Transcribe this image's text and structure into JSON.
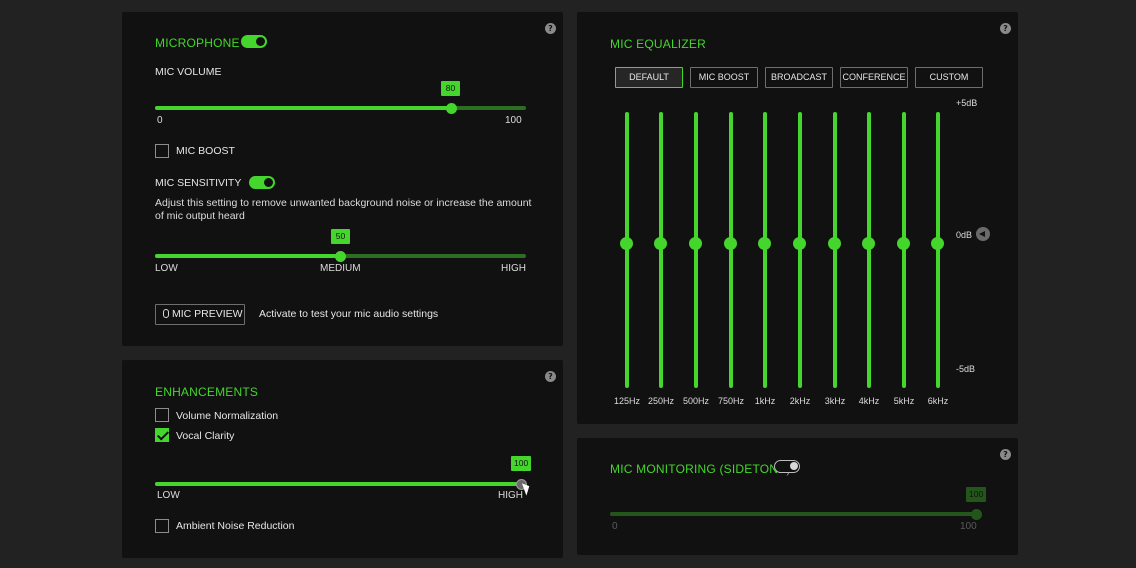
{
  "microphone": {
    "title": "MICROPHONE",
    "toggle_on": true,
    "volume_label": "MIC VOLUME",
    "volume_value": "80",
    "volume_fraction": 0.8,
    "volume_min": "0",
    "volume_max": "100",
    "mic_boost_label": "MIC BOOST",
    "mic_boost_checked": false,
    "sensitivity_label": "MIC SENSITIVITY",
    "sensitivity_toggle_on": true,
    "sensitivity_desc_line1": "Adjust this setting to remove unwanted background noise or increase the amount",
    "sensitivity_desc_line2": "of mic output heard",
    "sensitivity_value": "50",
    "sensitivity_fraction": 0.5,
    "sensitivity_low": "LOW",
    "sensitivity_medium": "MEDIUM",
    "sensitivity_high": "HIGH",
    "preview_button": "MIC PREVIEW",
    "preview_desc": "Activate to test your mic audio settings"
  },
  "enhancements": {
    "title": "ENHANCEMENTS",
    "volume_normalization": "Volume Normalization",
    "volume_normalization_checked": false,
    "vocal_clarity": "Vocal Clarity",
    "vocal_clarity_checked": true,
    "clarity_value": "100",
    "clarity_fraction": 1.0,
    "clarity_low": "LOW",
    "clarity_high": "HIGH",
    "ambient_noise": "Ambient Noise Reduction",
    "ambient_noise_checked": false
  },
  "equalizer": {
    "title": "MIC EQUALIZER",
    "presets": [
      "DEFAULT",
      "MIC BOOST",
      "BROADCAST",
      "CONFERENCE",
      "CUSTOM"
    ],
    "active_preset": "DEFAULT",
    "scale_top": "+5dB",
    "scale_mid": "0dB",
    "scale_bottom": "-5dB",
    "bands": [
      "125Hz",
      "250Hz",
      "500Hz",
      "750Hz",
      "1kHz",
      "2kHz",
      "3kHz",
      "4kHz",
      "5kHz",
      "6kHz"
    ],
    "gains_db": [
      0,
      0,
      0,
      0,
      0,
      0,
      0,
      0,
      0,
      0
    ]
  },
  "monitoring": {
    "title": "MIC MONITORING (SIDETONE)",
    "toggle_on": false,
    "value": "100",
    "fraction": 1.0,
    "min": "0",
    "max": "100"
  },
  "help_icon": "?",
  "colors": {
    "accent": "#44d62c",
    "panel": "#111111",
    "background": "#222222"
  }
}
